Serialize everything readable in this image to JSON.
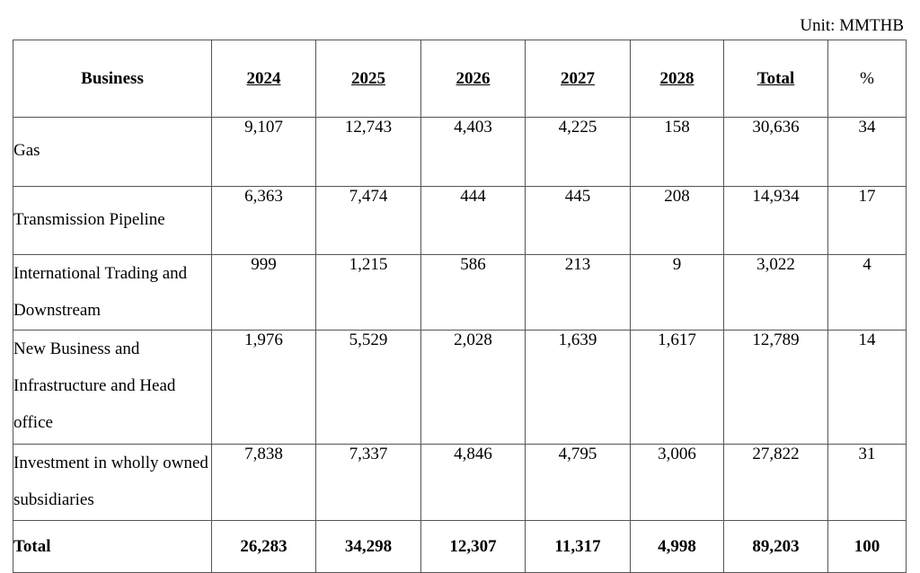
{
  "unit_label": "Unit: MMTHB",
  "headers": [
    "Business",
    "2024",
    "2025",
    "2026",
    "2027",
    "2028",
    "Total",
    "%"
  ],
  "rows": [
    {
      "name": "Gas",
      "values": [
        "9,107",
        "12,743",
        "4,403",
        "4,225",
        "158",
        "30,636",
        "34"
      ]
    },
    {
      "name": "Transmission Pipeline",
      "values": [
        "6,363",
        "7,474",
        "444",
        "445",
        "208",
        "14,934",
        "17"
      ]
    },
    {
      "name": "International Trading and Downstream",
      "values": [
        "999",
        "1,215",
        "586",
        "213",
        "9",
        "3,022",
        "4"
      ]
    },
    {
      "name": "New Business and Infrastructure and Head office",
      "values": [
        "1,976",
        "5,529",
        "2,028",
        "1,639",
        "1,617",
        "12,789",
        "14"
      ]
    },
    {
      "name": "Investment in wholly owned subsidiaries",
      "values": [
        "7,838",
        "7,337",
        "4,846",
        "4,795",
        "3,006",
        "27,822",
        "31"
      ]
    }
  ],
  "total_row": {
    "name": "Total",
    "values": [
      "26,283",
      "34,298",
      "12,307",
      "11,317",
      "4,998",
      "89,203",
      "100"
    ]
  }
}
